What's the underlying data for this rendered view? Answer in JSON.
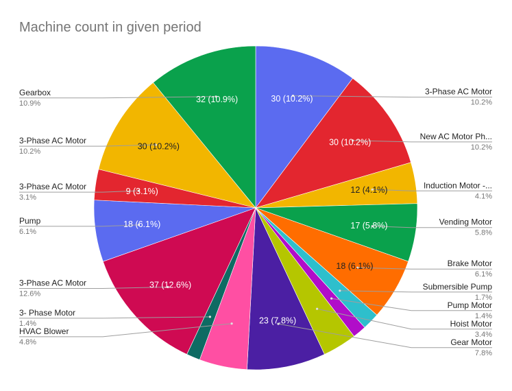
{
  "chart_data": {
    "type": "pie",
    "title": "Machine count in given period",
    "start_angle_deg": 0,
    "direction": "clockwise",
    "legend_position": "callouts",
    "slices": [
      {
        "label": "3-Phase AC Motor",
        "value": 30,
        "percent": "10.2%",
        "slice_label": "30 (10.2%)",
        "color": "#5b6bf0",
        "label_color": "#ffffff",
        "side": "right"
      },
      {
        "label": "New AC Motor Ph...",
        "value": 30,
        "percent": "10.2%",
        "slice_label": "30 (10.2%)",
        "color": "#e3262f",
        "label_color": "#ffffff",
        "side": "right"
      },
      {
        "label": "Induction Motor -...",
        "value": 12,
        "percent": "4.1%",
        "slice_label": "12 (4.1%)",
        "color": "#f2b600",
        "label_color": "#222222",
        "side": "right"
      },
      {
        "label": "Vending Motor",
        "value": 17,
        "percent": "5.8%",
        "slice_label": "17 (5.8%)",
        "color": "#0aa14c",
        "label_color": "#ffffff",
        "side": "right"
      },
      {
        "label": "Brake Motor",
        "value": 18,
        "percent": "6.1%",
        "slice_label": "18 (6.1%)",
        "color": "#ff6d00",
        "label_color": "#222222",
        "side": "right"
      },
      {
        "label": "Submersible Pump",
        "value": 5,
        "percent": "1.7%",
        "slice_label": "",
        "color": "#2ebfcc",
        "label_color": "#ffffff",
        "side": "right"
      },
      {
        "label": "Pump Motor",
        "value": 4,
        "percent": "1.4%",
        "slice_label": "",
        "color": "#b10dc9",
        "label_color": "#ffffff",
        "side": "right"
      },
      {
        "label": "Hoist Motor",
        "value": 10,
        "percent": "3.4%",
        "slice_label": "",
        "color": "#b5c600",
        "label_color": "#ffffff",
        "side": "right"
      },
      {
        "label": "Gear Motor",
        "value": 23,
        "percent": "7.8%",
        "slice_label": "23 (7.8%)",
        "color": "#4b1fa3",
        "label_color": "#ffffff",
        "side": "right"
      },
      {
        "label": "HVAC Blower",
        "value": 14,
        "percent": "4.8%",
        "slice_label": "",
        "color": "#ff4fa3",
        "label_color": "#ffffff",
        "side": "left"
      },
      {
        "label": "3- Phase Motor",
        "value": 4,
        "percent": "1.4%",
        "slice_label": "",
        "color": "#0e6b63",
        "label_color": "#ffffff",
        "side": "left"
      },
      {
        "label": "3-Phase AC Motor",
        "value": 37,
        "percent": "12.6%",
        "slice_label": "37 (12.6%)",
        "color": "#cf0a52",
        "label_color": "#ffffff",
        "side": "left"
      },
      {
        "label": "Pump",
        "value": 18,
        "percent": "6.1%",
        "slice_label": "18 (6.1%)",
        "color": "#5b6bf0",
        "label_color": "#ffffff",
        "side": "left"
      },
      {
        "label": "3-Phase AC Motor",
        "value": 9,
        "percent": "3.1%",
        "slice_label": "9 (3.1%)",
        "color": "#e3262f",
        "label_color": "#ffffff",
        "side": "left"
      },
      {
        "label": "3-Phase AC Motor",
        "value": 30,
        "percent": "10.2%",
        "slice_label": "30 (10.2%)",
        "color": "#f2b600",
        "label_color": "#222222",
        "side": "left"
      },
      {
        "label": "Gearbox",
        "value": 32,
        "percent": "10.9%",
        "slice_label": "32 (10.9%)",
        "color": "#0aa14c",
        "label_color": "#ffffff",
        "side": "left"
      }
    ]
  }
}
